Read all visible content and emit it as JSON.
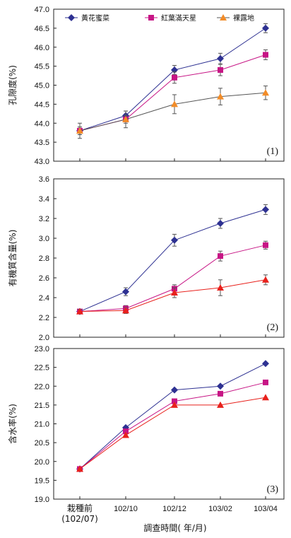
{
  "x_axis_label": "調查時間( 年/月)",
  "colors": {
    "series_1": "#2e3192",
    "series_2": "#c71585",
    "series_3_panel1": "#f28c28",
    "series_3_panels23": "#e8211c",
    "line_panel1_s3": "#555555"
  },
  "chart_data": [
    {
      "type": "line",
      "panel_label": "(1)",
      "ylabel": "孔隙度(%)",
      "ylim": [
        43.0,
        47.0
      ],
      "yticks": [
        "43.0",
        "43.5",
        "44.0",
        "44.5",
        "45.0",
        "45.5",
        "46.0",
        "46.5",
        "47.0"
      ],
      "categories": [
        "栽種前 (102/07)",
        "102/10",
        "102/12",
        "103/02",
        "103/04"
      ],
      "series": [
        {
          "name": "黃花蜜菜",
          "marker": "diamond",
          "values": [
            43.8,
            44.2,
            45.4,
            45.7,
            46.5
          ],
          "errors": [
            0.1,
            0.12,
            0.12,
            0.14,
            0.12
          ]
        },
        {
          "name": "紅葉滿天星",
          "marker": "square",
          "values": [
            43.8,
            44.1,
            45.2,
            45.4,
            45.8
          ],
          "errors": [
            0.1,
            0.1,
            0.15,
            0.15,
            0.13
          ]
        },
        {
          "name": "裸露地",
          "marker": "triangle",
          "values": [
            43.8,
            44.1,
            44.5,
            44.7,
            44.8
          ],
          "errors": [
            0.2,
            0.22,
            0.25,
            0.22,
            0.18
          ]
        }
      ]
    },
    {
      "type": "line",
      "panel_label": "(2)",
      "ylabel": "有機質含量(%)",
      "ylim": [
        2.0,
        3.6
      ],
      "yticks": [
        "2.0",
        "2.2",
        "2.4",
        "2.6",
        "2.8",
        "3.0",
        "3.2",
        "3.4",
        "3.6"
      ],
      "categories": [
        "栽種前 (102/07)",
        "102/10",
        "102/12",
        "103/02",
        "103/04"
      ],
      "series": [
        {
          "name": "黃花蜜菜",
          "marker": "diamond",
          "values": [
            2.26,
            2.46,
            2.98,
            3.15,
            3.29
          ],
          "errors": [
            0.02,
            0.04,
            0.06,
            0.05,
            0.05
          ]
        },
        {
          "name": "紅葉滿天星",
          "marker": "square",
          "values": [
            2.26,
            2.29,
            2.49,
            2.82,
            2.93
          ],
          "errors": [
            0.02,
            0.03,
            0.04,
            0.05,
            0.04
          ]
        },
        {
          "name": "裸露地",
          "marker": "triangle",
          "values": [
            2.26,
            2.27,
            2.45,
            2.5,
            2.58
          ],
          "errors": [
            0.02,
            0.03,
            0.05,
            0.08,
            0.05
          ]
        }
      ]
    },
    {
      "type": "line",
      "panel_label": "(3)",
      "ylabel": "含水率(%)",
      "ylim": [
        19.0,
        23.0
      ],
      "yticks": [
        "19.0",
        "19.5",
        "20.0",
        "20.5",
        "21.0",
        "21.5",
        "22.0",
        "22.5",
        "23.0"
      ],
      "categories": [
        "栽種前 (102/07)",
        "102/10",
        "102/12",
        "103/02",
        "103/04"
      ],
      "series": [
        {
          "name": "黃花蜜菜",
          "marker": "diamond",
          "values": [
            19.8,
            20.9,
            21.9,
            22.0,
            22.6
          ],
          "errors": [
            0,
            0,
            0,
            0,
            0
          ]
        },
        {
          "name": "紅葉滿天星",
          "marker": "square",
          "values": [
            19.8,
            20.8,
            21.6,
            21.8,
            22.1
          ],
          "errors": [
            0,
            0,
            0,
            0,
            0
          ]
        },
        {
          "name": "裸露地",
          "marker": "triangle",
          "values": [
            19.8,
            20.7,
            21.5,
            21.5,
            21.7
          ],
          "errors": [
            0,
            0,
            0,
            0,
            0
          ]
        }
      ]
    }
  ]
}
